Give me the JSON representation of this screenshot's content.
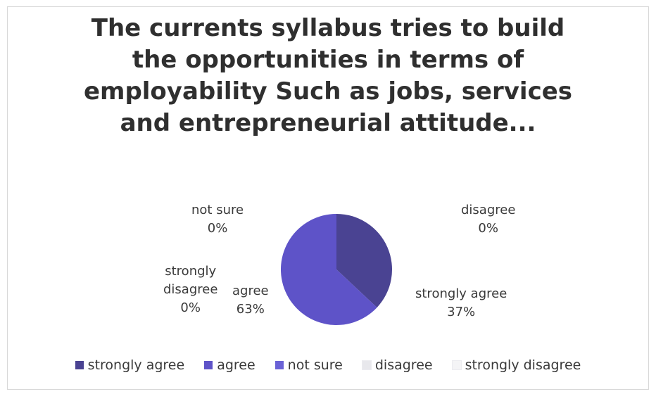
{
  "chart_data": {
    "type": "pie",
    "title": "The currents syllabus tries to build\nthe opportunities in terms of\nemployability Such as jobs, services\nand entrepreneurial attitude...",
    "categories": [
      "strongly agree",
      "agree",
      "not sure",
      "disagree",
      "strongly disagree"
    ],
    "values": [
      37,
      63,
      0,
      0,
      0
    ],
    "percent_labels": [
      "37%",
      "63%",
      "0%",
      "0%",
      "0%"
    ],
    "colors": [
      "#4a4392",
      "#5e53c8",
      "#6a62d6",
      "#e8e8ec",
      "#f4f4f6"
    ],
    "legend_position": "bottom",
    "slice_labels": [
      {
        "category": "strongly agree",
        "text": "strongly agree\n37%"
      },
      {
        "category": "agree",
        "text": "agree\n63%"
      },
      {
        "category": "not sure",
        "text": "not sure\n0%"
      },
      {
        "category": "disagree",
        "text": "disagree\n0%"
      },
      {
        "category": "strongly disagree",
        "text": "strongly\ndisagree\n0%"
      }
    ]
  }
}
